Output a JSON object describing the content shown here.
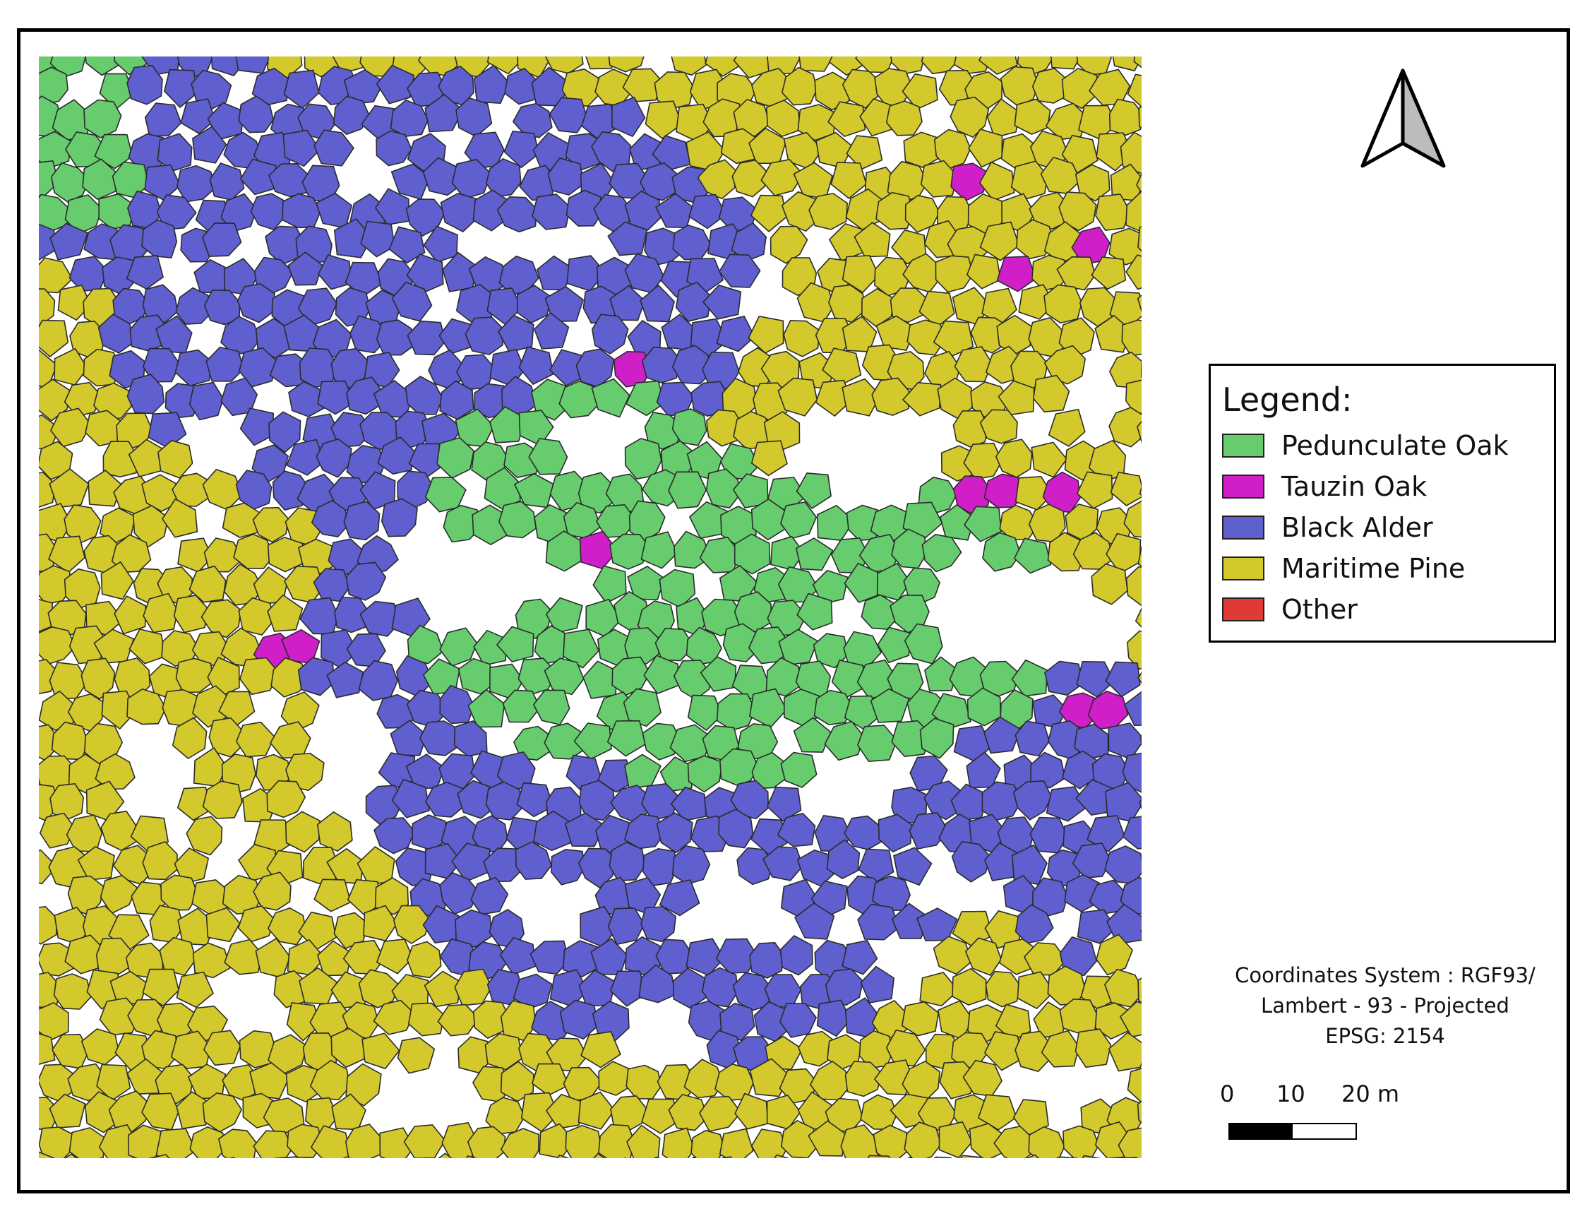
{
  "legend": {
    "title": "Legend:",
    "items": [
      {
        "label": "Pedunculate Oak",
        "color": "#66cc6e"
      },
      {
        "label": "Tauzin Oak",
        "color": "#d01ec8"
      },
      {
        "label": "Black Alder",
        "color": "#5f5fcf"
      },
      {
        "label": "Maritime Pine",
        "color": "#d3c92c"
      },
      {
        "label": "Other",
        "color": "#e03a35"
      }
    ]
  },
  "crs": {
    "line1": "Coordinates System : RGF93/",
    "line2": "Lambert - 93 - Projected",
    "line3": "EPSG: 2154"
  },
  "scale": {
    "labels": [
      "0",
      "10",
      "20 m"
    ]
  },
  "north_arrow": {
    "icon": "north-arrow-icon"
  }
}
